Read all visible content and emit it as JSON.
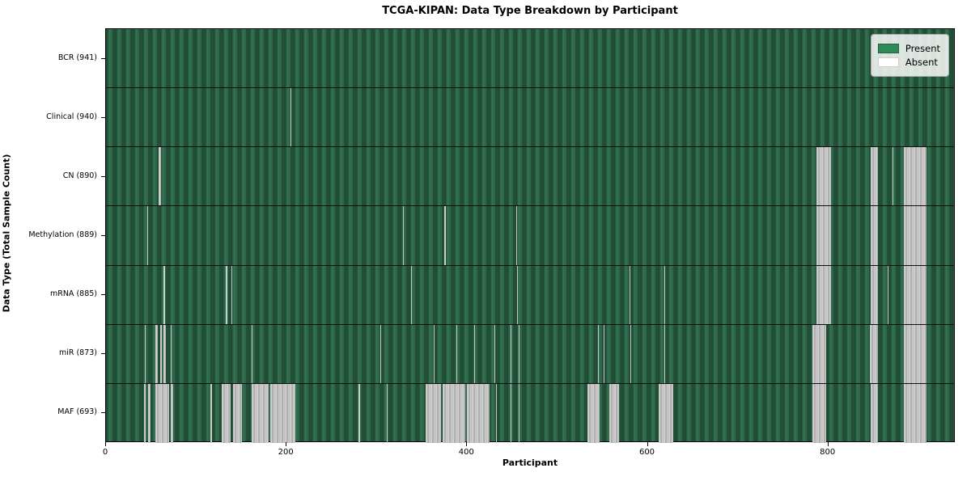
{
  "title": "TCGA-KIPAN: Data Type Breakdown by Participant",
  "x_axis_label": "Participant",
  "y_axis_label": "Data Type (Total Sample Count)",
  "legend": {
    "present_label": "Present",
    "absent_label": "Absent"
  },
  "colors": {
    "present": "#2e8b57",
    "absent": "#ffffff",
    "absent_stripe_gray": "#bdbdbd",
    "plot_green_dark": "#1e4c34",
    "plot_green_mid": "#2c6747"
  },
  "chart_data": {
    "type": "heatmap",
    "title": "TCGA-KIPAN: Data Type Breakdown by Participant",
    "xlabel": "Participant",
    "ylabel": "Data Type (Total Sample Count)",
    "x_domain": [
      0,
      941
    ],
    "x_ticks": [
      0,
      200,
      400,
      600,
      800
    ],
    "legend_position": "upper right",
    "grid": false,
    "cell_values": {
      "present": 1,
      "absent": 0
    },
    "rows": [
      {
        "label": "BCR (941)",
        "data_type": "BCR",
        "total_sample_count": 941,
        "absent_ranges": []
      },
      {
        "label": "Clinical (940)",
        "data_type": "Clinical",
        "total_sample_count": 940,
        "absent_ranges": [
          [
            204,
            204
          ]
        ]
      },
      {
        "label": "CN (890)",
        "data_type": "CN",
        "total_sample_count": 890,
        "absent_ranges": [
          [
            58,
            60
          ],
          [
            787,
            802
          ],
          [
            847,
            854
          ],
          [
            871,
            871
          ],
          [
            884,
            908
          ]
        ]
      },
      {
        "label": "Methylation (889)",
        "data_type": "Methylation",
        "total_sample_count": 889,
        "absent_ranges": [
          [
            46,
            46
          ],
          [
            329,
            329
          ],
          [
            375,
            375
          ],
          [
            454,
            454
          ],
          [
            787,
            802
          ],
          [
            847,
            854
          ],
          [
            884,
            908
          ]
        ]
      },
      {
        "label": "mRNA (885)",
        "data_type": "mRNA",
        "total_sample_count": 885,
        "absent_ranges": [
          [
            64,
            64
          ],
          [
            133,
            133
          ],
          [
            139,
            139
          ],
          [
            338,
            338
          ],
          [
            455,
            455
          ],
          [
            580,
            580
          ],
          [
            618,
            618
          ],
          [
            787,
            802
          ],
          [
            847,
            854
          ],
          [
            866,
            866
          ],
          [
            884,
            908
          ]
        ]
      },
      {
        "label": "miR (873)",
        "data_type": "miR",
        "total_sample_count": 873,
        "absent_ranges": [
          [
            43,
            43
          ],
          [
            55,
            56
          ],
          [
            60,
            61
          ],
          [
            64,
            65
          ],
          [
            72,
            72
          ],
          [
            161,
            161
          ],
          [
            304,
            304
          ],
          [
            363,
            363
          ],
          [
            388,
            388
          ],
          [
            408,
            408
          ],
          [
            430,
            430
          ],
          [
            448,
            448
          ],
          [
            457,
            457
          ],
          [
            545,
            545
          ],
          [
            551,
            551
          ],
          [
            581,
            581
          ],
          [
            618,
            618
          ],
          [
            782,
            797
          ],
          [
            846,
            854
          ],
          [
            884,
            908
          ]
        ]
      },
      {
        "label": "MAF (693)",
        "data_type": "MAF",
        "total_sample_count": 693,
        "absent_ranges": [
          [
            42,
            43
          ],
          [
            47,
            48
          ],
          [
            55,
            69
          ],
          [
            72,
            73
          ],
          [
            116,
            116
          ],
          [
            128,
            137
          ],
          [
            141,
            150
          ],
          [
            161,
            179
          ],
          [
            182,
            209
          ],
          [
            280,
            280
          ],
          [
            311,
            311
          ],
          [
            354,
            370
          ],
          [
            373,
            397
          ],
          [
            400,
            424
          ],
          [
            432,
            432
          ],
          [
            448,
            448
          ],
          [
            457,
            457
          ],
          [
            533,
            546
          ],
          [
            557,
            567
          ],
          [
            612,
            627
          ],
          [
            782,
            797
          ],
          [
            847,
            854
          ],
          [
            884,
            908
          ]
        ]
      }
    ]
  }
}
